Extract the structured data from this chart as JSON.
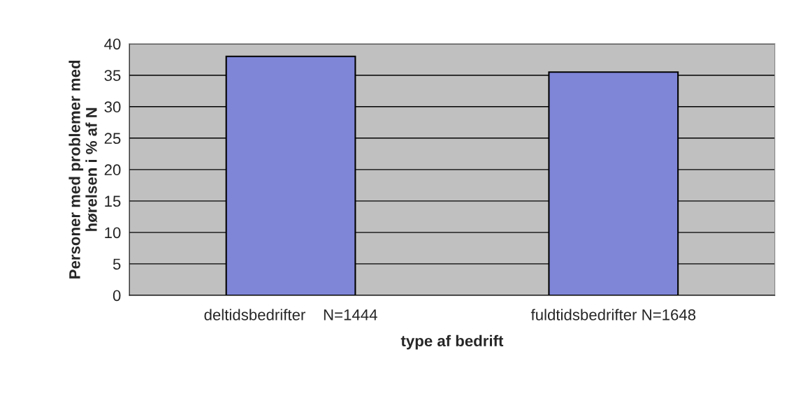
{
  "chart_data": {
    "type": "bar",
    "xlabel": "type af bedrift",
    "ylabel": "Personer med problemer med\nhørelsen i % af N",
    "categories": [
      "deltidsbedrifter    N=1444",
      "fuldtidsbedrifter N=1648"
    ],
    "values": [
      38,
      35.5
    ],
    "color": "#7f86d8",
    "ylim": [
      0,
      40
    ],
    "yticks": [
      0,
      5,
      10,
      15,
      20,
      25,
      30,
      35,
      40
    ],
    "grid": "y"
  }
}
